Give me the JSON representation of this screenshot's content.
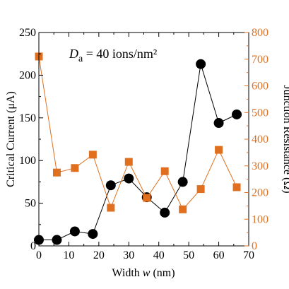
{
  "chart_data": {
    "type": "scatter",
    "colors": {
      "left": "#000000",
      "right": "#e07020"
    },
    "annotation": {
      "prefix": "D",
      "subscript": "a",
      "text": " = 40 ions/nm²"
    },
    "xlabel": {
      "text": "Width ",
      "var": "w",
      "unit": " (nm)"
    },
    "xlim": [
      0,
      70
    ],
    "xticks": [
      0,
      10,
      20,
      30,
      40,
      50,
      60,
      70
    ],
    "y_left": {
      "label": "Critical Current (μA)",
      "lim": [
        0,
        250
      ],
      "ticks": [
        0,
        50,
        100,
        150,
        200,
        250
      ]
    },
    "y_right": {
      "label": "Junction Resistance (Ω)",
      "lim": [
        0,
        800
      ],
      "ticks": [
        0,
        100,
        200,
        300,
        400,
        500,
        600,
        700,
        800
      ]
    },
    "series": [
      {
        "axis": "left",
        "marker": "circle",
        "x": [
          0,
          6,
          12,
          18,
          24,
          30,
          36,
          42,
          48,
          54,
          60,
          66
        ],
        "y": [
          7,
          7,
          17,
          14,
          71,
          79,
          57,
          39,
          75,
          213,
          144,
          154
        ]
      },
      {
        "axis": "right",
        "marker": "square",
        "x": [
          0,
          6,
          12,
          18,
          24,
          30,
          36,
          42,
          48,
          54,
          60,
          66
        ],
        "y": [
          710,
          275,
          292,
          342,
          143,
          315,
          180,
          280,
          137,
          213,
          360,
          220
        ]
      }
    ]
  }
}
